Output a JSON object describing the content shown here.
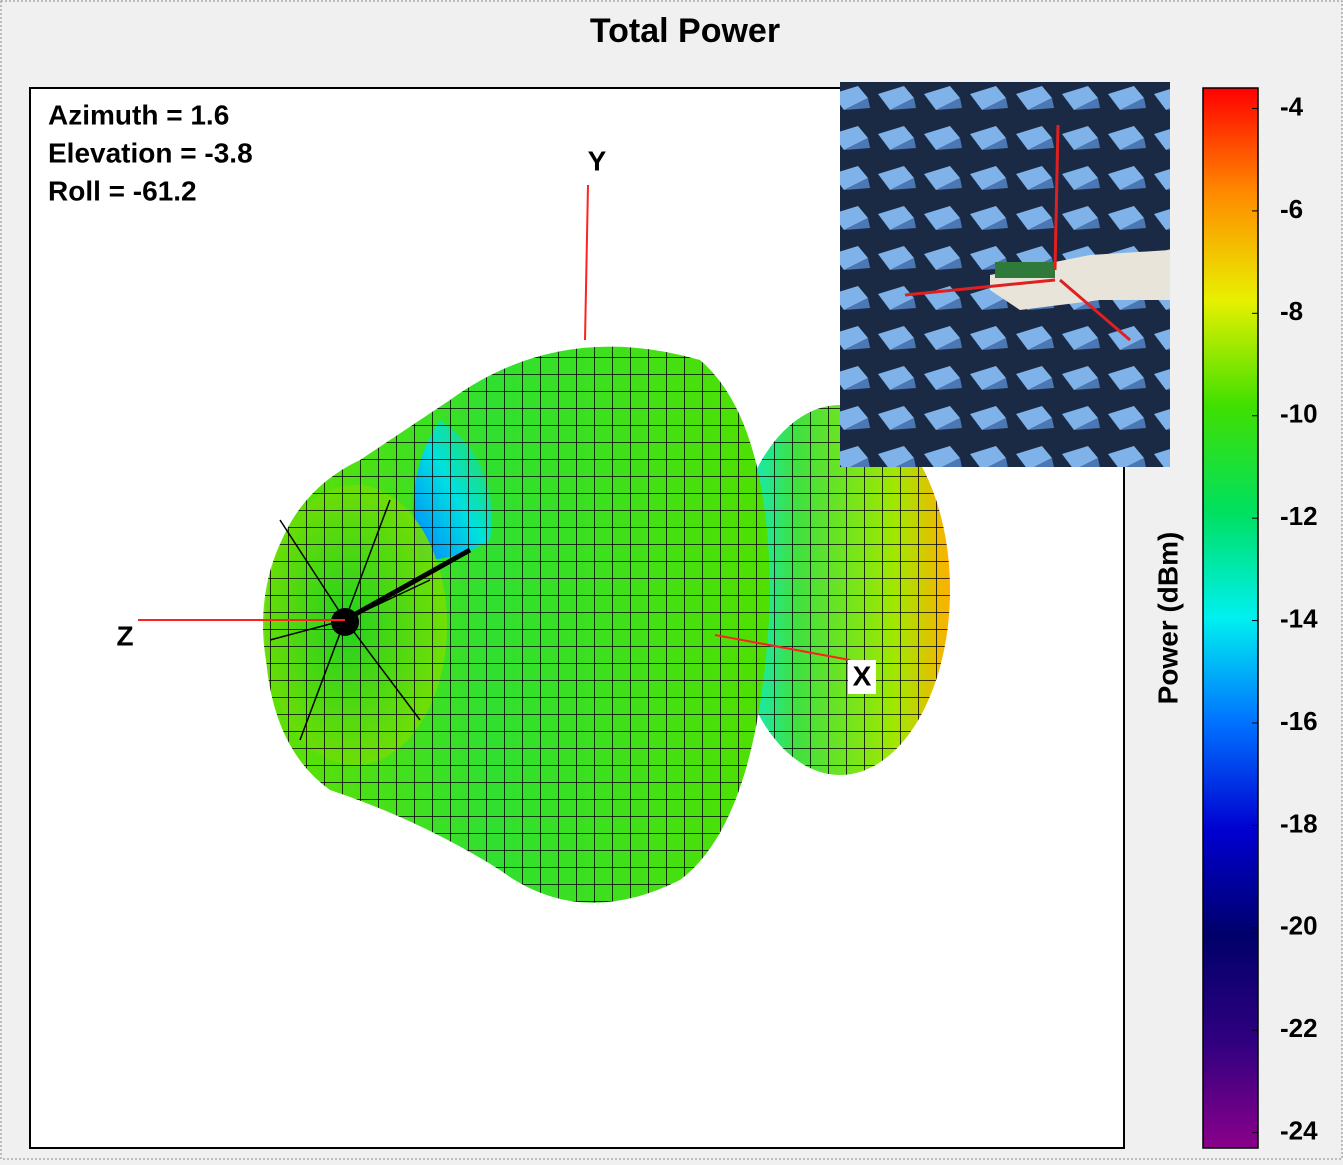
{
  "chart_data": {
    "type": "pattern3d",
    "title": "Total Power",
    "view": [
      "Azimuth = 1.6",
      "Elevation = -3.8",
      "Roll = -61.2"
    ],
    "axis_labels": [
      "Y",
      "Z",
      "X"
    ],
    "colorbar": {
      "label": "Power  (dBm)",
      "lim": [
        -3.6,
        -24.3
      ],
      "ticks": [
        -4,
        -6,
        -8,
        -10,
        -12,
        -14,
        -16,
        -18,
        -20,
        -22,
        -24
      ],
      "colormap": [
        "#ff0000",
        "#ff8c00",
        "#e8f000",
        "#40e000",
        "#00e060",
        "#00f0f0",
        "#0070ff",
        "#0000d0",
        "#00006a",
        "#300080",
        "#8a008a"
      ]
    }
  }
}
